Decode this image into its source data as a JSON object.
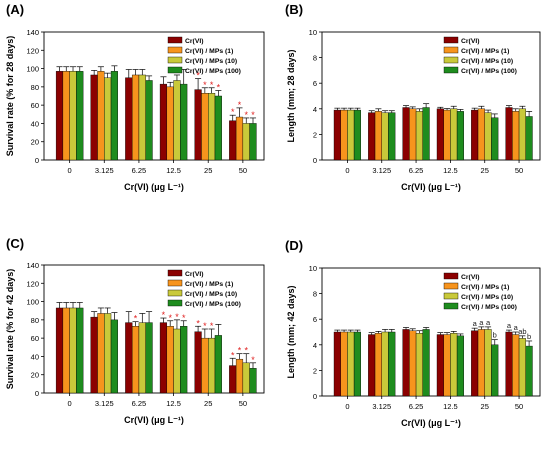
{
  "figure": {
    "panel_labels": [
      "(A)",
      "(B)",
      "(C)",
      "(D)"
    ],
    "colors": {
      "Cr(VI)": "#8B0000",
      "Cr(VI) / MPs (1)": "#F7941D",
      "Cr(VI) / MPs (10)": "#C9C93A",
      "Cr(VI) / MPs (100)": "#1E8C1E",
      "annotation": "#E02020",
      "annotation_letter": "#1a1a1a"
    }
  },
  "chart_data": [
    {
      "type": "bar",
      "panel": "(A)",
      "xlabel": "Cr(VI) (μg L⁻¹)",
      "ylabel": "Survival rate (% for 28 days)",
      "ylim": [
        0,
        140
      ],
      "yticks": [
        0,
        20,
        40,
        60,
        80,
        100,
        120,
        140
      ],
      "categories": [
        "0",
        "3.125",
        "6.25",
        "12.5",
        "25",
        "50"
      ],
      "legend_position": "top-right",
      "series": [
        {
          "name": "Cr(VI)",
          "values": [
            97,
            93,
            90,
            83,
            77,
            43
          ],
          "errors": [
            5,
            5,
            9,
            8,
            12,
            6
          ]
        },
        {
          "name": "Cr(VI) / MPs (1)",
          "values": [
            97,
            97,
            93,
            80,
            73,
            47
          ],
          "errors": [
            5,
            5,
            6,
            5,
            6,
            10
          ]
        },
        {
          "name": "Cr(VI) / MPs (10)",
          "values": [
            97,
            90,
            93,
            87,
            73,
            40
          ],
          "errors": [
            5,
            5,
            6,
            6,
            6,
            6
          ]
        },
        {
          "name": "Cr(VI) / MPs (100)",
          "values": [
            97,
            97,
            87,
            83,
            70,
            40
          ],
          "errors": [
            5,
            6,
            5,
            16,
            6,
            6
          ]
        }
      ],
      "annotations": [
        {
          "category": "25",
          "series": "Cr(VI)",
          "text": "*"
        },
        {
          "category": "25",
          "series": "Cr(VI) / MPs (1)",
          "text": "*"
        },
        {
          "category": "25",
          "series": "Cr(VI) / MPs (10)",
          "text": "*"
        },
        {
          "category": "25",
          "series": "Cr(VI) / MPs (100)",
          "text": "*"
        },
        {
          "category": "50",
          "series": "Cr(VI)",
          "text": "*"
        },
        {
          "category": "50",
          "series": "Cr(VI) / MPs (1)",
          "text": "*"
        },
        {
          "category": "50",
          "series": "Cr(VI) / MPs (10)",
          "text": "*"
        },
        {
          "category": "50",
          "series": "Cr(VI) / MPs (100)",
          "text": "*"
        }
      ]
    },
    {
      "type": "bar",
      "panel": "(B)",
      "xlabel": "Cr(VI) (μg L⁻¹)",
      "ylabel": "Length (mm; 28 days)",
      "ylim": [
        0,
        10
      ],
      "yticks": [
        0,
        2,
        4,
        6,
        8,
        10
      ],
      "categories": [
        "0",
        "3.125",
        "6.25",
        "12.5",
        "25",
        "50"
      ],
      "legend_position": "top-right",
      "series": [
        {
          "name": "Cr(VI)",
          "values": [
            3.9,
            3.7,
            4.1,
            4.0,
            3.9,
            4.1
          ],
          "errors": [
            0.15,
            0.15,
            0.15,
            0.12,
            0.15,
            0.15
          ]
        },
        {
          "name": "Cr(VI) / MPs (1)",
          "values": [
            3.9,
            3.8,
            4.0,
            3.9,
            4.0,
            3.8
          ],
          "errors": [
            0.15,
            0.2,
            0.15,
            0.12,
            0.2,
            0.2
          ]
        },
        {
          "name": "Cr(VI) / MPs (10)",
          "values": [
            3.9,
            3.7,
            3.8,
            4.0,
            3.7,
            4.0
          ],
          "errors": [
            0.15,
            0.15,
            0.2,
            0.2,
            0.2,
            0.2
          ]
        },
        {
          "name": "Cr(VI) / MPs (100)",
          "values": [
            3.9,
            3.7,
            4.1,
            3.8,
            3.3,
            3.4
          ],
          "errors": [
            0.15,
            0.15,
            0.3,
            0.15,
            0.3,
            0.4
          ]
        }
      ],
      "annotations": []
    },
    {
      "type": "bar",
      "panel": "(C)",
      "xlabel": "Cr(VI) (μg L⁻¹)",
      "ylabel": "Survival rate (% for 42 days)",
      "ylim": [
        0,
        140
      ],
      "yticks": [
        0,
        20,
        40,
        60,
        80,
        100,
        120,
        140
      ],
      "categories": [
        "0",
        "3.125",
        "6.25",
        "12.5",
        "25",
        "50"
      ],
      "legend_position": "top-right",
      "series": [
        {
          "name": "Cr(VI)",
          "values": [
            93,
            83,
            77,
            77,
            67,
            30
          ],
          "errors": [
            6,
            6,
            12,
            5,
            6,
            8
          ]
        },
        {
          "name": "Cr(VI) / MPs (1)",
          "values": [
            93,
            87,
            73,
            73,
            60,
            37
          ],
          "errors": [
            6,
            6,
            5,
            6,
            10,
            6
          ]
        },
        {
          "name": "Cr(VI) / MPs (10)",
          "values": [
            93,
            87,
            77,
            70,
            60,
            33
          ],
          "errors": [
            6,
            6,
            10,
            10,
            10,
            10
          ]
        },
        {
          "name": "Cr(VI) / MPs (100)",
          "values": [
            93,
            80,
            77,
            73,
            63,
            27
          ],
          "errors": [
            6,
            8,
            12,
            6,
            12,
            6
          ]
        }
      ],
      "annotations": [
        {
          "category": "6.25",
          "series": "Cr(VI) / MPs (1)",
          "text": "*"
        },
        {
          "category": "12.5",
          "series": "Cr(VI)",
          "text": "*"
        },
        {
          "category": "12.5",
          "series": "Cr(VI) / MPs (1)",
          "text": "*"
        },
        {
          "category": "12.5",
          "series": "Cr(VI) / MPs (10)",
          "text": "*"
        },
        {
          "category": "12.5",
          "series": "Cr(VI) / MPs (100)",
          "text": "*"
        },
        {
          "category": "25",
          "series": "Cr(VI)",
          "text": "*"
        },
        {
          "category": "25",
          "series": "Cr(VI) / MPs (1)",
          "text": "*"
        },
        {
          "category": "25",
          "series": "Cr(VI) / MPs (10)",
          "text": "*"
        },
        {
          "category": "50",
          "series": "Cr(VI)",
          "text": "*"
        },
        {
          "category": "50",
          "series": "Cr(VI) / MPs (1)",
          "text": "*"
        },
        {
          "category": "50",
          "series": "Cr(VI) / MPs (10)",
          "text": "*"
        },
        {
          "category": "50",
          "series": "Cr(VI) / MPs (100)",
          "text": "*"
        }
      ]
    },
    {
      "type": "bar",
      "panel": "(D)",
      "xlabel": "Cr(VI) (μg L⁻¹)",
      "ylabel": "Length (mm; 42 days)",
      "ylim": [
        0,
        10
      ],
      "yticks": [
        0,
        2,
        4,
        6,
        8,
        10
      ],
      "categories": [
        "0",
        "3.125",
        "6.25",
        "12.5",
        "25",
        "50"
      ],
      "legend_position": "top-right",
      "series": [
        {
          "name": "Cr(VI)",
          "values": [
            5.0,
            4.8,
            5.2,
            4.8,
            5.1,
            5.0
          ],
          "errors": [
            0.15,
            0.15,
            0.15,
            0.15,
            0.2,
            0.15
          ]
        },
        {
          "name": "Cr(VI) / MPs (1)",
          "values": [
            5.0,
            4.9,
            5.1,
            4.8,
            5.2,
            4.8
          ],
          "errors": [
            0.15,
            0.15,
            0.15,
            0.15,
            0.2,
            0.2
          ]
        },
        {
          "name": "Cr(VI) / MPs (10)",
          "values": [
            5.0,
            5.0,
            4.9,
            4.9,
            5.2,
            4.5
          ],
          "errors": [
            0.15,
            0.2,
            0.2,
            0.15,
            0.2,
            0.2
          ]
        },
        {
          "name": "Cr(VI) / MPs (100)",
          "values": [
            5.0,
            5.0,
            5.2,
            4.7,
            4.0,
            3.9
          ],
          "errors": [
            0.15,
            0.2,
            0.15,
            0.15,
            0.4,
            0.4
          ]
        }
      ],
      "annotations": [
        {
          "category": "25",
          "series": "Cr(VI)",
          "text": "a"
        },
        {
          "category": "25",
          "series": "Cr(VI) / MPs (1)",
          "text": "a"
        },
        {
          "category": "25",
          "series": "Cr(VI) / MPs (10)",
          "text": "a"
        },
        {
          "category": "25",
          "series": "Cr(VI) / MPs (100)",
          "text": "b"
        },
        {
          "category": "50",
          "series": "Cr(VI)",
          "text": "a"
        },
        {
          "category": "50",
          "series": "Cr(VI) / MPs (1)",
          "text": "a"
        },
        {
          "category": "50",
          "series": "Cr(VI) / MPs (10)",
          "text": "ab"
        },
        {
          "category": "50",
          "series": "Cr(VI) / MPs (100)",
          "text": "b"
        }
      ]
    }
  ]
}
